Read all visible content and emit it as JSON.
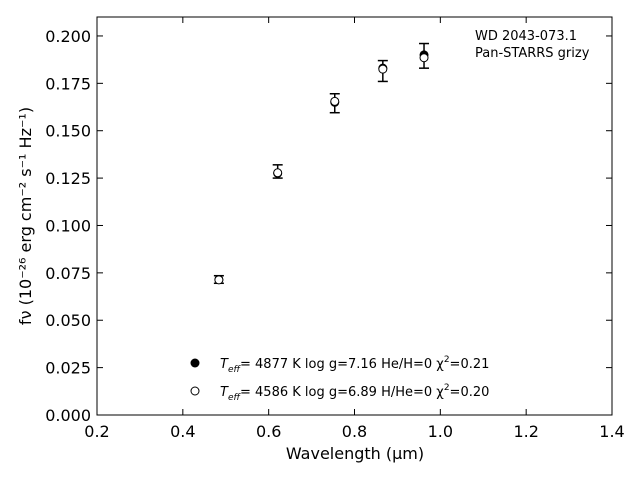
{
  "chart_data": {
    "type": "scatter",
    "xlabel": "Wavelength (μm)",
    "ylabel": "fν (10⁻²⁶ erg cm⁻² s⁻¹ Hz⁻¹)",
    "xlim": [
      0.2,
      1.4
    ],
    "ylim": [
      0.0,
      0.21
    ],
    "xticks": [
      "0.2",
      "0.4",
      "0.6",
      "0.8",
      "1.0",
      "1.2",
      "1.4"
    ],
    "yticks": [
      "0.000",
      "0.025",
      "0.050",
      "0.075",
      "0.100",
      "0.125",
      "0.150",
      "0.175",
      "0.200"
    ],
    "grid": false,
    "annotation": [
      "WD 2043-073.1",
      "Pan-STARRS grizy"
    ],
    "observed": {
      "x": [
        0.484,
        0.621,
        0.754,
        0.866,
        0.962
      ],
      "y": [
        0.0715,
        0.1285,
        0.1645,
        0.1815,
        0.1895
      ],
      "yerr": [
        0.002,
        0.0035,
        0.005,
        0.0055,
        0.0065
      ]
    },
    "series": [
      {
        "marker": "filled",
        "x": [
          0.484,
          0.621,
          0.754,
          0.866,
          0.962
        ],
        "y": [
          0.0715,
          0.1275,
          0.165,
          0.183,
          0.19
        ],
        "teff_label": "T",
        "teff_sub": "eff",
        "rest": "=  4877 K  log g=7.16  He/H=0  χ",
        "chi_sup": "2",
        "chi_val": "=0.21"
      },
      {
        "marker": "open",
        "x": [
          0.484,
          0.621,
          0.754,
          0.866,
          0.962
        ],
        "y": [
          0.0713,
          0.1278,
          0.1655,
          0.1825,
          0.1885
        ],
        "teff_label": "T",
        "teff_sub": "eff",
        "rest": "=  4586 K  log g=6.89  H/He=0  χ",
        "chi_sup": "2",
        "chi_val": "=0.20"
      }
    ],
    "legend_position": "bottom-center",
    "colors": {
      "marker": "#000000",
      "axis": "#000000"
    }
  }
}
